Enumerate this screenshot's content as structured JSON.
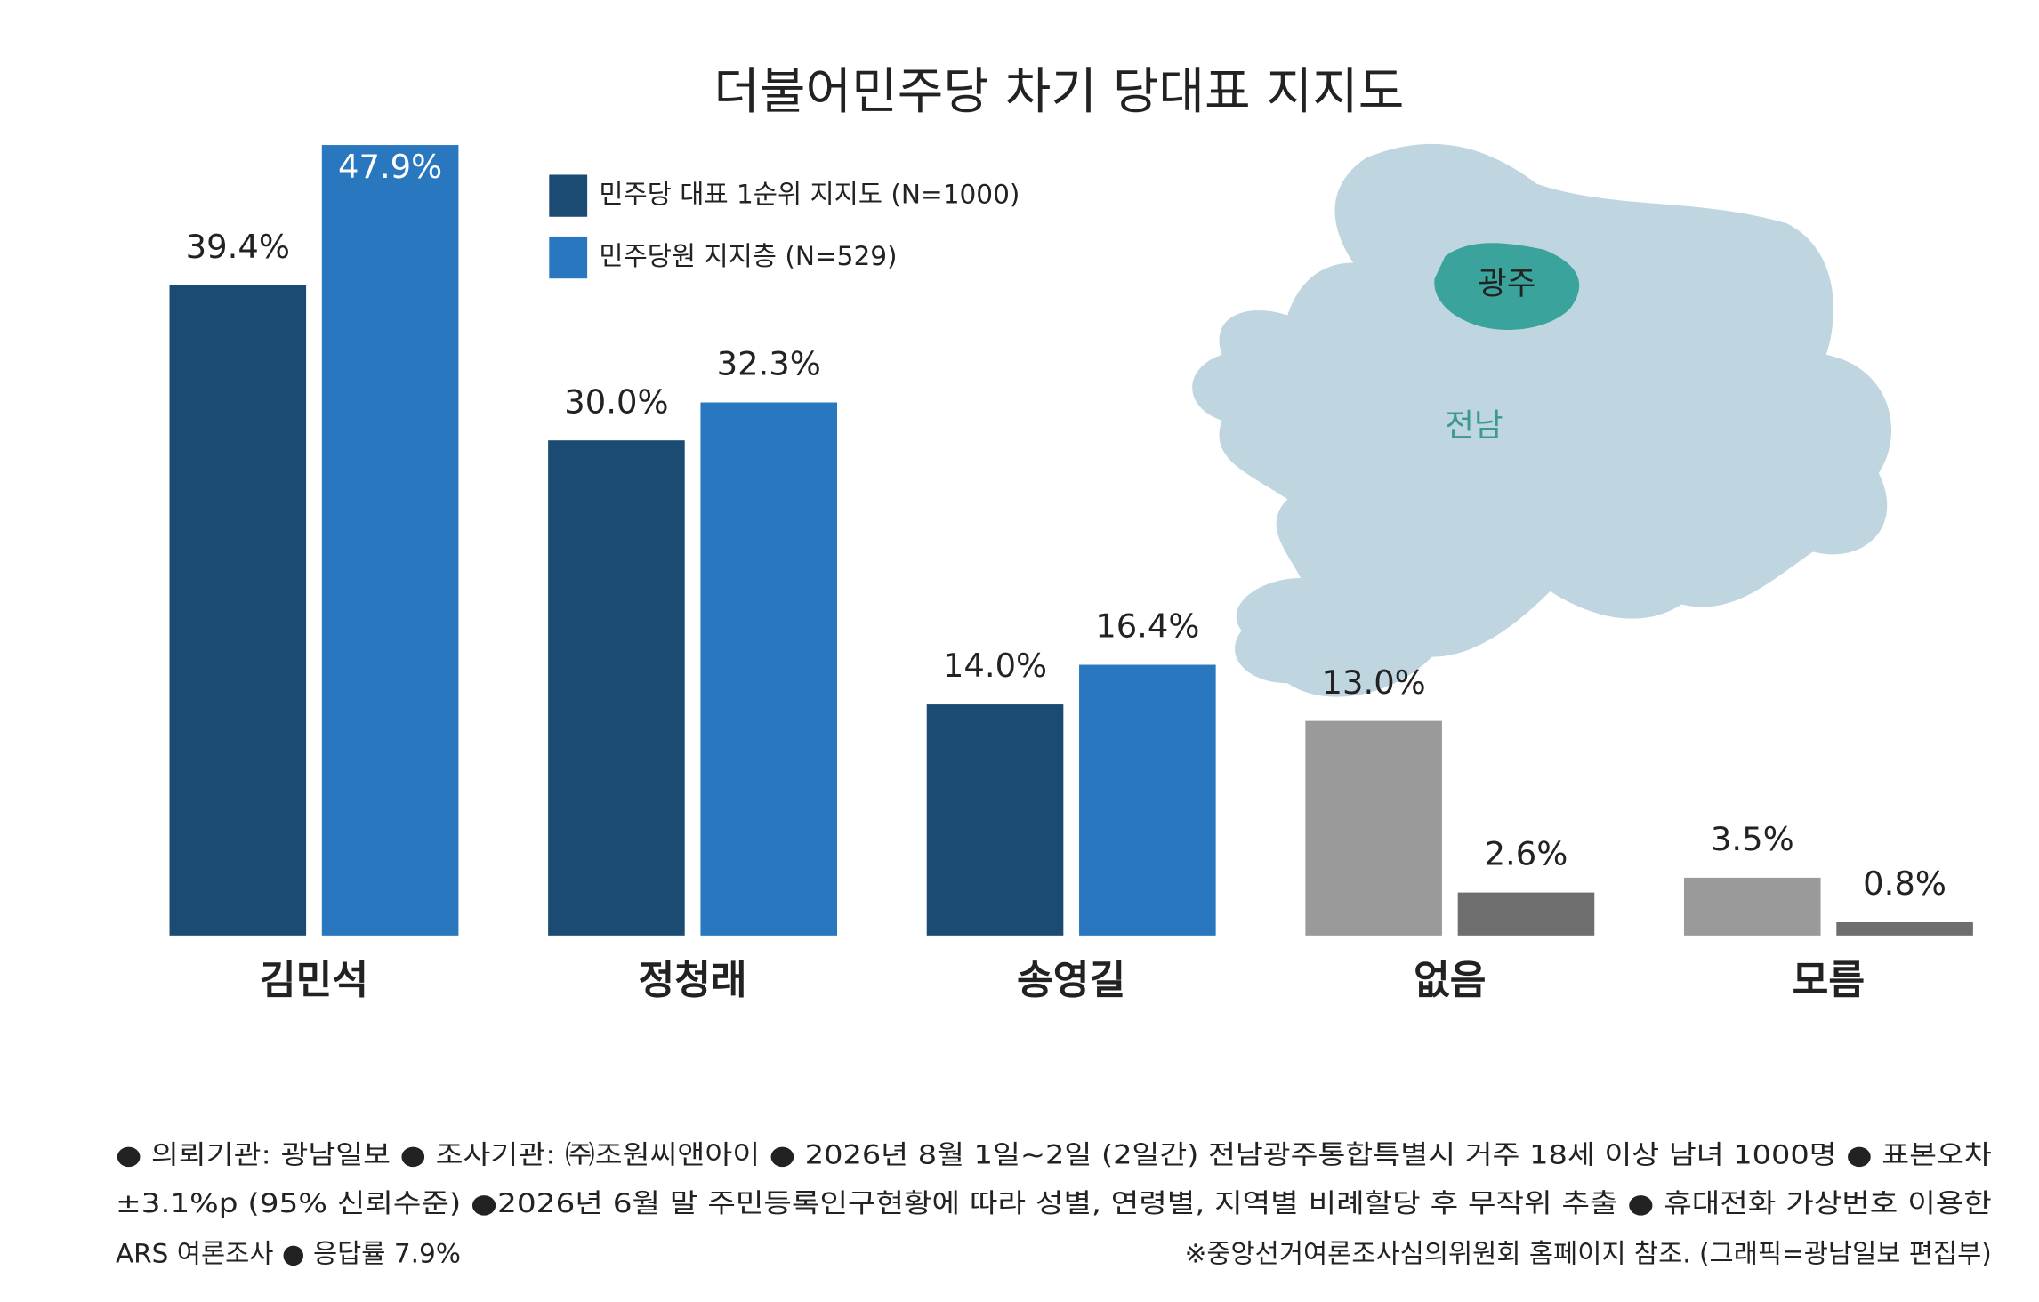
{
  "chart_data": {
    "type": "bar",
    "title": "더불어민주당 차기 당대표 지지도",
    "categories": [
      "김민석",
      "정청래",
      "송영길",
      "없음",
      "모름"
    ],
    "series": [
      {
        "name": "민주당 대표 1순위 지지도 (N=1000)",
        "color": "#1b4a72",
        "colors": [
          "#1b4a72",
          "#1b4a72",
          "#1b4a72",
          "#9a9a9a",
          "#9a9a9a"
        ],
        "values": [
          39.4,
          30.0,
          14.0,
          13.0,
          3.5
        ],
        "value_labels": [
          "39.4%",
          "30.0%",
          "14.0%",
          "13.0%",
          "3.5%"
        ]
      },
      {
        "name": "민주당원 지지층 (N=529)",
        "color": "#2877bf",
        "colors": [
          "#2877bf",
          "#2877bf",
          "#2877bf",
          "#6e6e6e",
          "#6e6e6e"
        ],
        "values": [
          47.9,
          32.3,
          16.4,
          2.6,
          0.8
        ],
        "value_labels": [
          "47.9%",
          "32.3%",
          "16.4%",
          "2.6%",
          "0.8%"
        ]
      }
    ],
    "ylim": [
      0,
      50
    ],
    "annotations": [
      "광주",
      "전남"
    ],
    "footnote": [
      "● 의뢰기관: 광남일보 ● 조사기관: ㈜조원씨앤아이 ● 2026년 8월 1일~2일 (2일간) 전남광주통합특별시 거주 18세 이상 남녀 1000명 ● 표본오차",
      "±3.1%p (95% 신뢰수준) ●2026년 6월 말 주민등록인구현황에 따라 성별, 연령별, 지역별 비례할당 후 무작위 추출 ● 휴대전화 가상번호 이용한",
      "ARS 여론조사 ● 응답률 7.9%",
      "※중앙선거여론조사심의위원회 홈페이지 참조. (그래픽=광남일보 편집부)"
    ]
  }
}
